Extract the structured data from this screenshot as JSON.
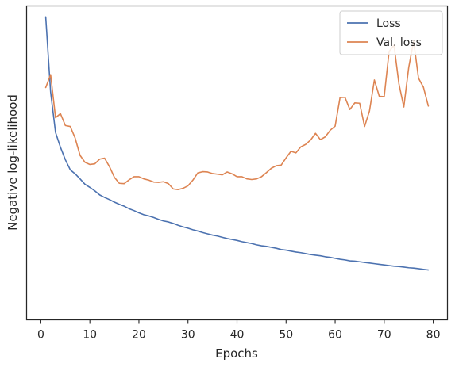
{
  "chart_data": {
    "type": "line",
    "xlabel": "Epochs",
    "ylabel": "Negative log-likelihood",
    "xlim": [
      -2.9,
      82.9
    ],
    "ylim": [
      0.0,
      1.0
    ],
    "x_ticks": [
      0,
      10,
      20,
      30,
      40,
      50,
      60,
      70,
      80
    ],
    "y_ticks_shown": false,
    "grid": false,
    "legend_position": "upper right",
    "x": [
      1,
      2,
      3,
      4,
      5,
      6,
      7,
      8,
      9,
      10,
      11,
      12,
      13,
      14,
      15,
      16,
      17,
      18,
      19,
      20,
      21,
      22,
      23,
      24,
      25,
      26,
      27,
      28,
      29,
      30,
      31,
      32,
      33,
      34,
      35,
      36,
      37,
      38,
      39,
      40,
      41,
      42,
      43,
      44,
      45,
      46,
      47,
      48,
      49,
      50,
      51,
      52,
      53,
      54,
      55,
      56,
      57,
      58,
      59,
      60,
      61,
      62,
      63,
      64,
      65,
      66,
      67,
      68,
      69,
      70,
      71,
      72,
      73,
      74,
      75,
      76,
      77,
      78,
      79
    ],
    "series": [
      {
        "name": "Loss",
        "color": "#4c72b0",
        "values": [
          0.965,
          0.725,
          0.597,
          0.55,
          0.51,
          0.478,
          0.465,
          0.449,
          0.432,
          0.422,
          0.411,
          0.398,
          0.39,
          0.383,
          0.375,
          0.368,
          0.362,
          0.354,
          0.348,
          0.341,
          0.335,
          0.331,
          0.326,
          0.32,
          0.315,
          0.312,
          0.307,
          0.301,
          0.296,
          0.292,
          0.287,
          0.283,
          0.278,
          0.274,
          0.27,
          0.267,
          0.263,
          0.259,
          0.256,
          0.253,
          0.249,
          0.246,
          0.243,
          0.239,
          0.236,
          0.234,
          0.231,
          0.228,
          0.224,
          0.222,
          0.219,
          0.216,
          0.214,
          0.211,
          0.208,
          0.206,
          0.204,
          0.201,
          0.199,
          0.196,
          0.193,
          0.191,
          0.188,
          0.187,
          0.185,
          0.183,
          0.181,
          0.179,
          0.177,
          0.175,
          0.173,
          0.171,
          0.17,
          0.168,
          0.166,
          0.165,
          0.163,
          0.161,
          0.159
        ]
      },
      {
        "name": "Val. loss",
        "color": "#dd8452",
        "values": [
          0.74,
          0.781,
          0.644,
          0.657,
          0.619,
          0.616,
          0.579,
          0.524,
          0.502,
          0.495,
          0.497,
          0.512,
          0.515,
          0.488,
          0.454,
          0.435,
          0.434,
          0.446,
          0.456,
          0.456,
          0.449,
          0.445,
          0.439,
          0.438,
          0.44,
          0.434,
          0.417,
          0.415,
          0.419,
          0.427,
          0.445,
          0.468,
          0.472,
          0.471,
          0.466,
          0.464,
          0.462,
          0.471,
          0.465,
          0.456,
          0.456,
          0.449,
          0.447,
          0.449,
          0.456,
          0.469,
          0.483,
          0.491,
          0.493,
          0.516,
          0.537,
          0.532,
          0.551,
          0.559,
          0.573,
          0.594,
          0.574,
          0.583,
          0.604,
          0.617,
          0.708,
          0.709,
          0.67,
          0.691,
          0.69,
          0.616,
          0.665,
          0.764,
          0.712,
          0.711,
          0.855,
          0.875,
          0.752,
          0.678,
          0.804,
          0.888,
          0.77,
          0.741,
          0.681
        ]
      }
    ]
  }
}
